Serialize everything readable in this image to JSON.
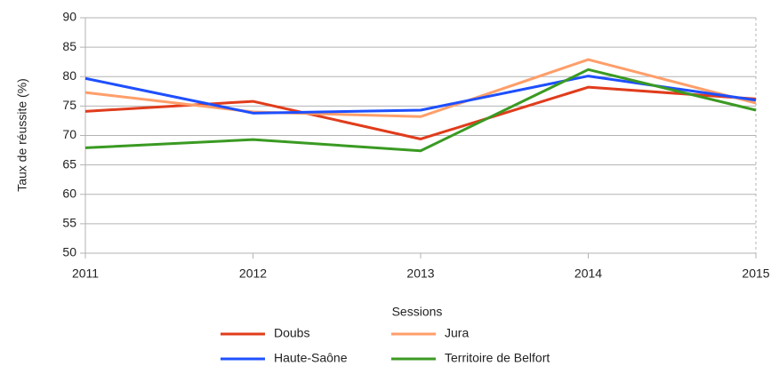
{
  "chart_data": {
    "type": "line",
    "x_label": "Sessions",
    "y_label": "Taux de réussite (%)",
    "x": [
      2011,
      2012,
      2013,
      2014,
      2015
    ],
    "xlim": [
      2011,
      2015
    ],
    "xticks": [
      2011,
      2012,
      2013,
      2014,
      2015
    ],
    "ylim": [
      50,
      90
    ],
    "yticks": [
      50,
      55,
      60,
      65,
      70,
      75,
      80,
      85,
      90
    ],
    "grid": true,
    "legend": "bottom",
    "series": [
      {
        "name": "Doubs",
        "color": "#e03c1c",
        "values": [
          74.1,
          75.8,
          69.4,
          78.2,
          76.2
        ]
      },
      {
        "name": "Jura",
        "color": "#ff9e6a",
        "values": [
          77.3,
          74.0,
          73.2,
          82.9,
          75.5
        ]
      },
      {
        "name": "Haute-Saône",
        "color": "#1e4fff",
        "values": [
          79.7,
          73.8,
          74.3,
          80.1,
          76.0
        ]
      },
      {
        "name": "Territoire de Belfort",
        "color": "#3a9a22",
        "values": [
          67.9,
          69.3,
          67.4,
          81.2,
          74.3
        ]
      }
    ]
  }
}
